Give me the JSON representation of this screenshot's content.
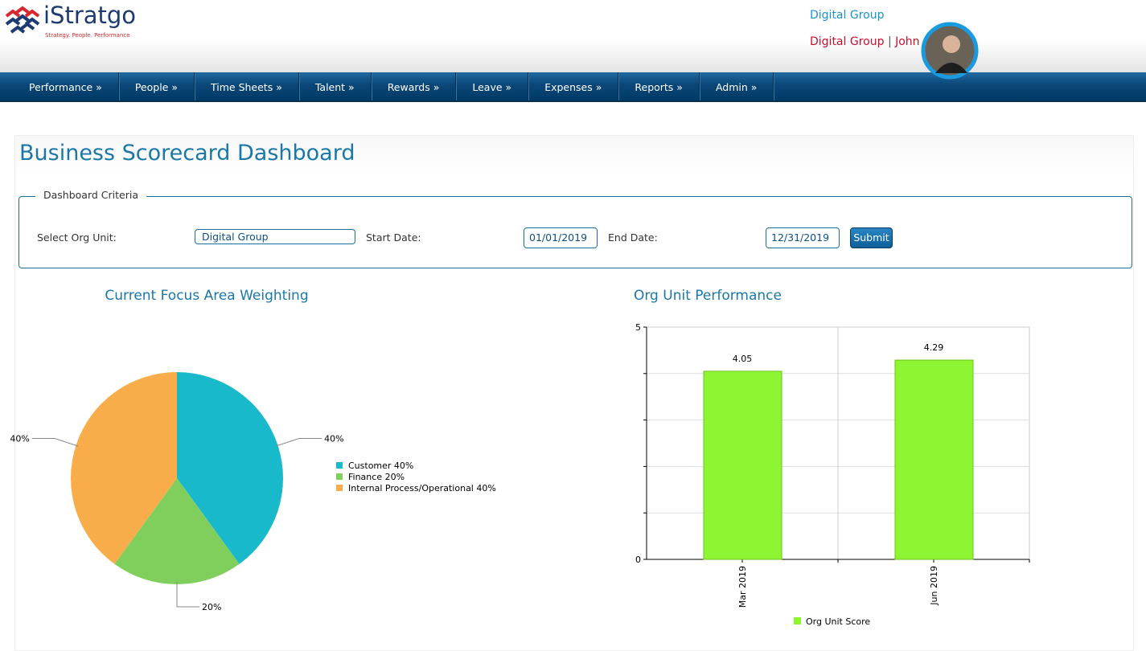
{
  "header": {
    "logo": "iStratgo",
    "tagline": "Strategy. People. Performance",
    "org": "Digital Group",
    "user_org": "Digital Group",
    "separator": "|",
    "user": "John"
  },
  "nav": [
    "Performance »",
    "People »",
    "Time Sheets »",
    "Talent »",
    "Rewards »",
    "Leave »",
    "Expenses »",
    "Reports »",
    "Admin »"
  ],
  "page": {
    "title": "Business Scorecard Dashboard"
  },
  "criteria": {
    "legend": "Dashboard Criteria",
    "org_label": "Select Org Unit:",
    "org_value": "Digital Group",
    "start_label": "Start Date:",
    "start_value": "01/01/2019",
    "end_label": "End Date:",
    "end_value": "12/31/2019",
    "submit": "Submit"
  },
  "chart_data": [
    {
      "type": "pie",
      "title": "Current Focus Area Weighting",
      "categories": [
        "Customer 40%",
        "Finance 20%",
        "Internal Process/Operational 40%"
      ],
      "values": [
        40,
        20,
        40
      ],
      "value_labels": [
        "40%",
        "20%",
        "40%"
      ],
      "colors": [
        "#19b9cc",
        "#80cf5c",
        "#f8ad4a"
      ]
    },
    {
      "type": "bar",
      "title": "Org Unit Performance",
      "categories": [
        "Mar 2019",
        "Jun 2019"
      ],
      "series": [
        {
          "name": "Org Unit Score",
          "color": "#8ef533",
          "values": [
            4.05,
            4.29
          ]
        }
      ],
      "ylim": [
        0,
        5
      ],
      "yticks": [
        0,
        5
      ],
      "minor_yticks": [
        1,
        2,
        3,
        4
      ],
      "grid": true
    }
  ]
}
